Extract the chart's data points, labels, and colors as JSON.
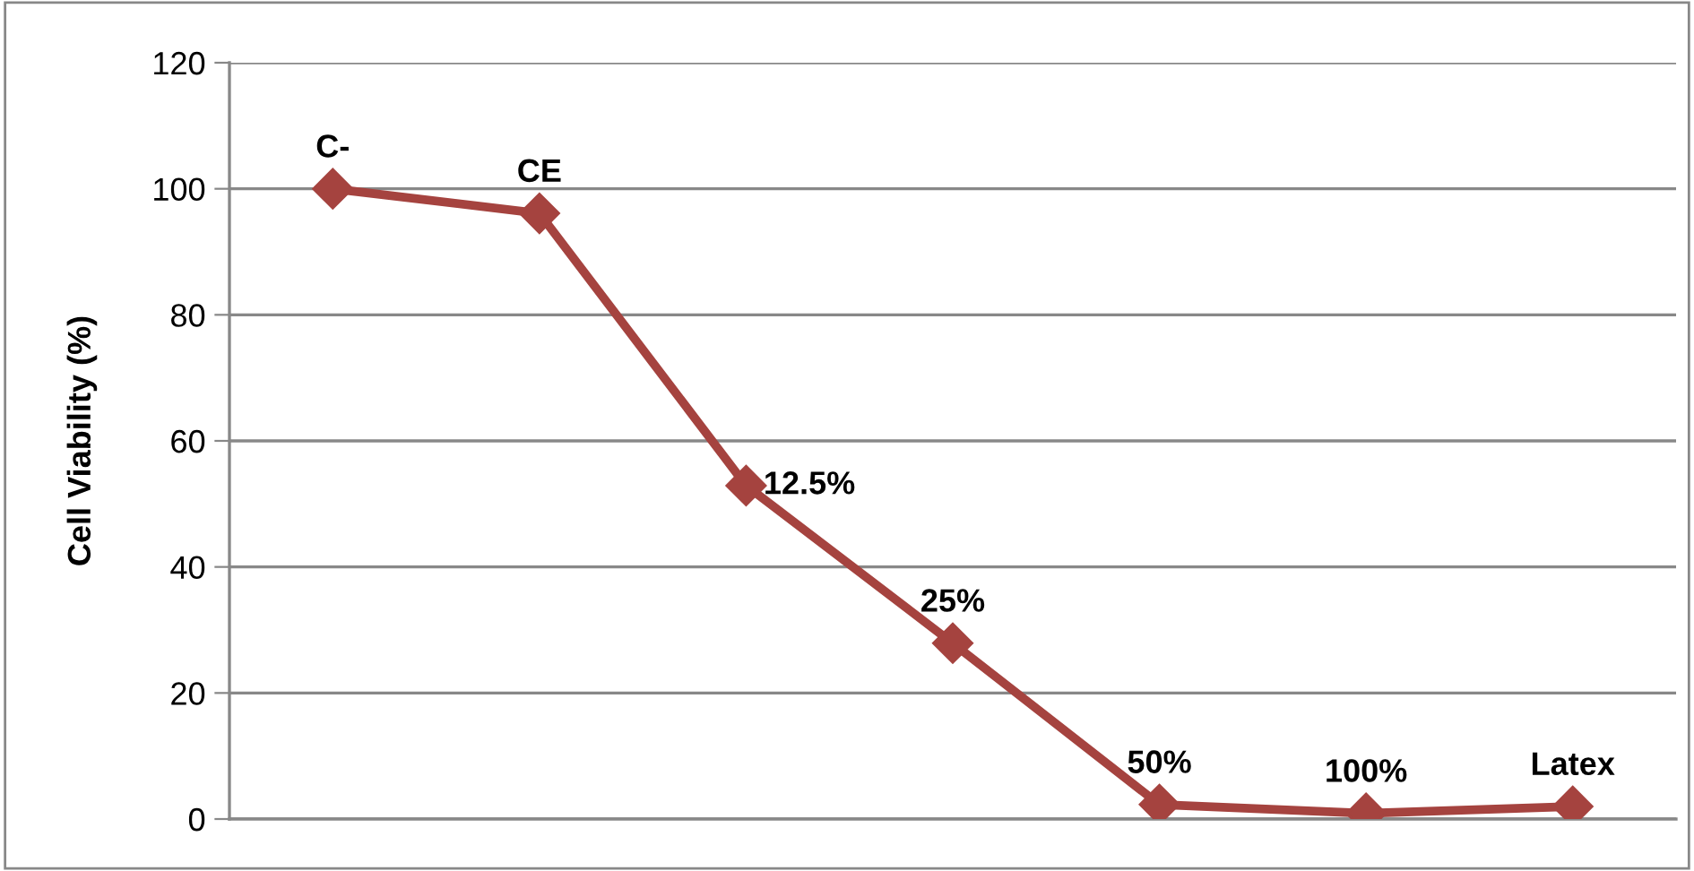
{
  "chart_data": {
    "type": "line",
    "ylabel": "Cell Viability (%)",
    "categories": [
      "C-",
      "CE",
      "12.5%",
      "25%",
      "50%",
      "100%",
      "Latex"
    ],
    "series": [
      {
        "color": "#a5433f",
        "values": [
          100,
          96.1,
          52.9,
          27.9,
          2.3,
          0.9,
          2.0
        ]
      }
    ],
    "ylim": [
      0,
      120
    ],
    "yticks": [
      0,
      20,
      40,
      60,
      80,
      100,
      120
    ],
    "grid": "y",
    "marker": "diamond",
    "line_style": "solid",
    "tick_labels": "y"
  }
}
